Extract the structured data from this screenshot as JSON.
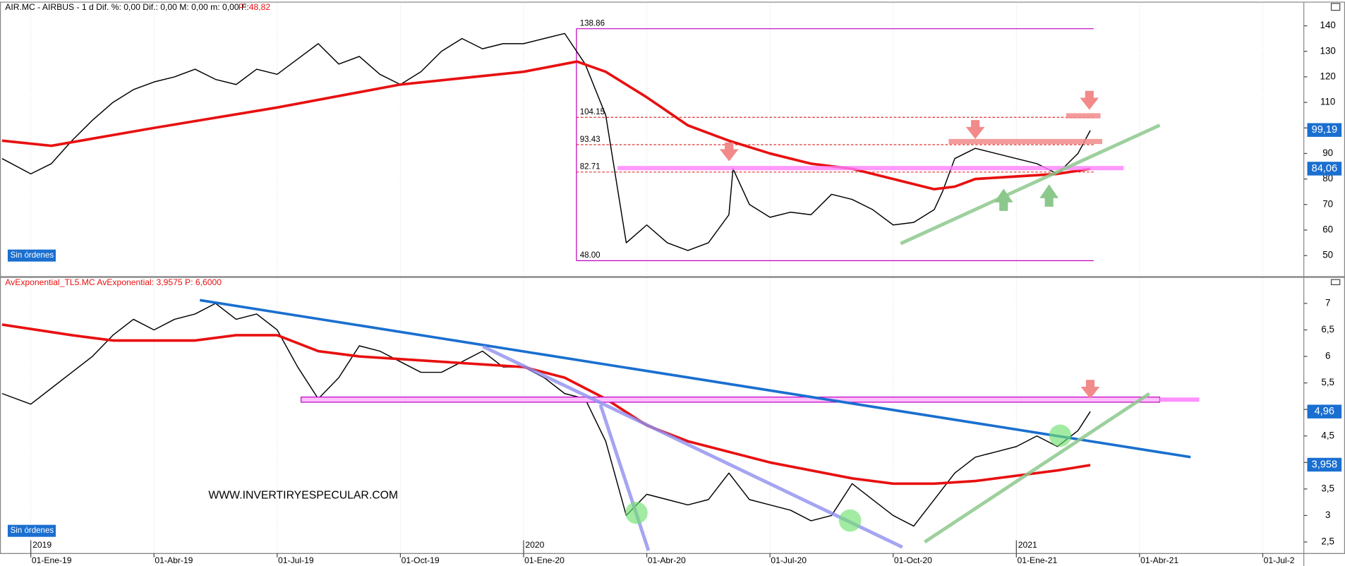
{
  "chart_data": [
    {
      "type": "line",
      "title": "AIR.MC - AIRBUS - 1 d  Dif. %: 0,00  Dif.: 0,00  M: 0,00  m: 0,00  F:",
      "price_label": "P: 48,82",
      "status": "Sin órdenes",
      "xlim": [
        -0.75,
        31
      ],
      "ylim": [
        41.95,
        145.4
      ],
      "yticks": [
        50,
        60,
        70,
        80,
        90,
        100,
        110,
        120,
        130,
        140
      ],
      "levels": [
        138.86,
        104.15,
        93.43,
        82.71,
        {
          "value": 48,
          "label": "48.00"
        }
      ],
      "last_values": [
        {
          "value": 99.19,
          "label": "99,19"
        },
        {
          "value": 84.06,
          "label": "84,06"
        }
      ],
      "x": [
        -0.7,
        0,
        0.5,
        1,
        1.5,
        2,
        2.5,
        3,
        3.5,
        4,
        4.5,
        5,
        5.5,
        6,
        6.5,
        7,
        7.5,
        8,
        8.5,
        9,
        9.5,
        10,
        10.5,
        11,
        11.5,
        12,
        12.5,
        13,
        13.5,
        14,
        14.5,
        15,
        15.5,
        16,
        16.5,
        17,
        17.1,
        17.5,
        18,
        18.5,
        19,
        19.5,
        20,
        20.5,
        21,
        21.5,
        22,
        22.2,
        22.5,
        23,
        23.5,
        24,
        24.5,
        25,
        25.5,
        25.8
      ],
      "series": [
        {
          "color": "#000000",
          "values": [
            88,
            82,
            86,
            95,
            103,
            110,
            115,
            118,
            120,
            123,
            119,
            117,
            123,
            121,
            127,
            133,
            125,
            128,
            121,
            117,
            122,
            130,
            135,
            131,
            133,
            133,
            135,
            137,
            125,
            105,
            55,
            62,
            55,
            52,
            55,
            66,
            84,
            70,
            65,
            67,
            66,
            74,
            72,
            68,
            62,
            63,
            68,
            75,
            88,
            92,
            90,
            88,
            86,
            82,
            90,
            99
          ]
        },
        {
          "color": "#e81010",
          "x": [
            -0.7,
            0.5,
            3,
            6,
            9,
            12,
            13.3,
            14,
            15,
            16,
            17,
            18,
            19,
            20,
            21,
            22,
            22.5,
            23,
            24,
            25,
            25.8
          ],
          "values": [
            95,
            93,
            100,
            108,
            117,
            122,
            126,
            122,
            112,
            101,
            95,
            90,
            86,
            84,
            80,
            76,
            77,
            80,
            81,
            82,
            84
          ]
        }
      ]
    },
    {
      "type": "line",
      "title": "AvExponential_TL5.MC  AvExponential: 3,9575  P: 6,6000",
      "status": "Sin órdenes",
      "watermark": "WWW.INVERTIRYESPECULAR.COM",
      "xlim": [
        -0.75,
        31
      ],
      "xticks": [
        {
          "value": 0,
          "label": "01-Ene-19"
        },
        {
          "value": 3,
          "label": "01-Abr-19"
        },
        {
          "value": 6,
          "label": "01-Jul-19"
        },
        {
          "value": 9,
          "label": "01-Oct-19"
        },
        {
          "value": 12,
          "label": "01-Ene-20"
        },
        {
          "value": 15,
          "label": "01-Abr-20"
        },
        {
          "value": 18,
          "label": "01-Jul-20"
        },
        {
          "value": 21,
          "label": "01-Oct-20"
        },
        {
          "value": 24,
          "label": "01-Ene-21"
        },
        {
          "value": 27,
          "label": "01-Abr-21"
        },
        {
          "value": 30,
          "label": "01-Jul-2"
        }
      ],
      "year_ticks": [
        {
          "value": 0,
          "label": "2019"
        },
        {
          "value": 12,
          "label": "2020"
        },
        {
          "value": 24,
          "label": "2021"
        }
      ],
      "ylim": [
        2.29,
        7.32
      ],
      "yticks": [
        {
          "value": 2.5,
          "label": "2,5"
        },
        3,
        {
          "value": 3.5,
          "label": "3,5"
        },
        4,
        {
          "value": 4.5,
          "label": "4,5"
        },
        5,
        {
          "value": 5.5,
          "label": "5,5"
        },
        6,
        {
          "value": 6.5,
          "label": "6,5"
        },
        7
      ],
      "last_values": [
        {
          "value": 4.96,
          "label": "4,96"
        },
        {
          "value": 3.958,
          "label": "3,958"
        }
      ],
      "x": [
        -0.7,
        0,
        0.5,
        1,
        1.5,
        2,
        2.5,
        3,
        3.5,
        4,
        4.5,
        5,
        5.5,
        6,
        6.5,
        7,
        7.5,
        8,
        8.5,
        9,
        9.5,
        10,
        10.5,
        11,
        11.5,
        12,
        12.5,
        13,
        13.5,
        14,
        14.5,
        15,
        15.5,
        16,
        16.5,
        17,
        17.5,
        18,
        18.5,
        19,
        19.5,
        20,
        20.5,
        21,
        21.5,
        22,
        22.5,
        23,
        23.5,
        24,
        24.5,
        25,
        25.5,
        25.8
      ],
      "series": [
        {
          "color": "#000000",
          "values": [
            5.3,
            5.1,
            5.4,
            5.7,
            6.0,
            6.4,
            6.7,
            6.5,
            6.7,
            6.8,
            7.0,
            6.7,
            6.8,
            6.5,
            5.8,
            5.2,
            5.6,
            6.2,
            6.1,
            5.9,
            5.7,
            5.7,
            5.9,
            6.1,
            5.8,
            5.8,
            5.6,
            5.3,
            5.2,
            4.4,
            3.0,
            3.4,
            3.3,
            3.2,
            3.3,
            3.8,
            3.3,
            3.2,
            3.1,
            2.9,
            3.0,
            3.6,
            3.3,
            3.0,
            2.8,
            3.3,
            3.8,
            4.1,
            4.2,
            4.3,
            4.5,
            4.3,
            4.6,
            4.96
          ]
        },
        {
          "color": "#e81010",
          "x": [
            -0.7,
            1,
            2,
            4,
            5,
            6,
            7,
            8,
            10,
            12,
            13,
            14,
            15,
            16,
            17,
            18,
            19,
            20,
            21,
            22,
            23,
            24,
            25,
            25.8
          ],
          "values": [
            6.6,
            6.4,
            6.3,
            6.3,
            6.4,
            6.4,
            6.1,
            6.0,
            5.9,
            5.8,
            5.6,
            5.2,
            4.7,
            4.4,
            4.2,
            4.0,
            3.85,
            3.7,
            3.6,
            3.6,
            3.65,
            3.75,
            3.85,
            3.95
          ]
        }
      ]
    }
  ]
}
